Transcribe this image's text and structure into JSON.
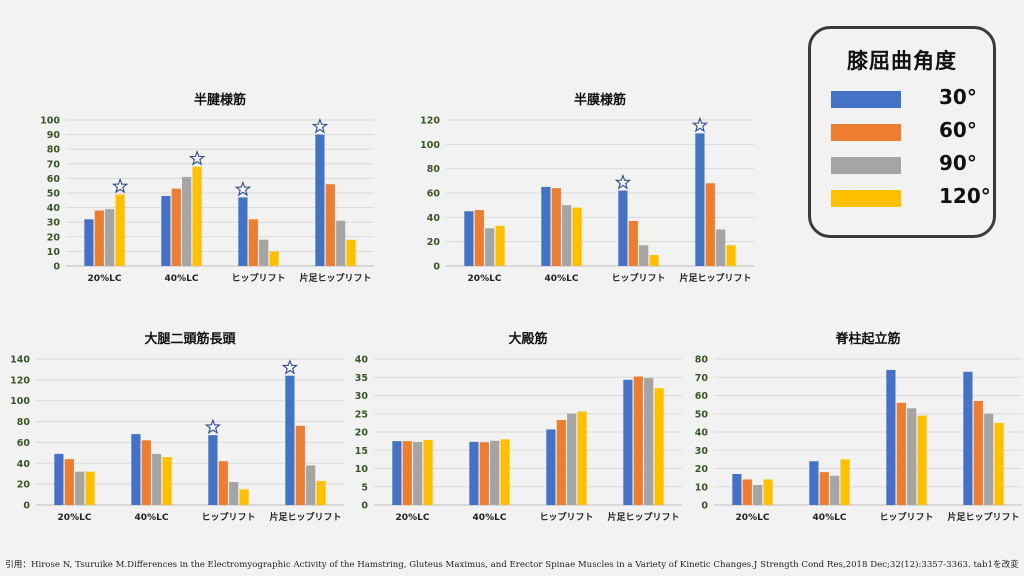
{
  "colors": {
    "s30": "#4472c4",
    "s60": "#ed7d31",
    "s90": "#a5a5a5",
    "s120": "#ffc000",
    "grid": "#d9d9d9",
    "tick": "#375623",
    "star": "#2f4d8f"
  },
  "legend": {
    "title": "膝屈曲角度",
    "items": [
      {
        "label": "30°",
        "color": "#4472c4"
      },
      {
        "label": "60°",
        "color": "#ed7d31"
      },
      {
        "label": "90°",
        "color": "#a5a5a5"
      },
      {
        "label": "120°",
        "color": "#ffc000"
      }
    ]
  },
  "citation": "引用：Hirose N, Tsuruike M.Differences in the Electromyographic Activity of the Hamstring, Gluteus Maximus, and Erector Spinae Muscles in a Variety of Kinetic Changes.J Strength Cond Res,2018 Dec;32(12):3357-3363. tab1を改変",
  "chart_data": [
    {
      "type": "bar",
      "title": "半腱様筋",
      "categories": [
        "20%LC",
        "40%LC",
        "ヒップリフト",
        "片足ヒップリフト"
      ],
      "series": [
        {
          "name": "30°",
          "values": [
            32,
            48,
            47,
            90
          ]
        },
        {
          "name": "60°",
          "values": [
            38,
            53,
            32,
            56
          ]
        },
        {
          "name": "90°",
          "values": [
            39,
            61,
            18,
            31
          ]
        },
        {
          "name": "120°",
          "values": [
            49,
            68,
            10,
            18
          ]
        }
      ],
      "ylim": [
        0,
        100
      ],
      "ytick_step": 10,
      "stars": [
        {
          "category": 0,
          "series": 3
        },
        {
          "category": 1,
          "series": 3
        },
        {
          "category": 2,
          "series": 0
        },
        {
          "category": 3,
          "series": 0
        }
      ]
    },
    {
      "type": "bar",
      "title": "半膜様筋",
      "categories": [
        "20%LC",
        "40%LC",
        "ヒップリフト",
        "片足ヒップリフト"
      ],
      "series": [
        {
          "name": "30°",
          "values": [
            45,
            65,
            62,
            109
          ]
        },
        {
          "name": "60°",
          "values": [
            46,
            64,
            37,
            68
          ]
        },
        {
          "name": "90°",
          "values": [
            31,
            50,
            17,
            30
          ]
        },
        {
          "name": "120°",
          "values": [
            33,
            48,
            9,
            17
          ]
        }
      ],
      "ylim": [
        0,
        120
      ],
      "ytick_step": 20,
      "stars": [
        {
          "category": 2,
          "series": 0
        },
        {
          "category": 3,
          "series": 0
        }
      ]
    },
    {
      "type": "bar",
      "title": "大腿二頭筋長頭",
      "categories": [
        "20%LC",
        "40%LC",
        "ヒップリフト",
        "片足ヒップリフト"
      ],
      "series": [
        {
          "name": "30°",
          "values": [
            49,
            68,
            67,
            124
          ]
        },
        {
          "name": "60°",
          "values": [
            44,
            62,
            42,
            76
          ]
        },
        {
          "name": "90°",
          "values": [
            32,
            49,
            22,
            38
          ]
        },
        {
          "name": "120°",
          "values": [
            32,
            46,
            15,
            23
          ]
        }
      ],
      "ylim": [
        0,
        140
      ],
      "ytick_step": 20,
      "stars": [
        {
          "category": 2,
          "series": 0
        },
        {
          "category": 3,
          "series": 0
        }
      ]
    },
    {
      "type": "bar",
      "title": "大殿筋",
      "categories": [
        "20%LC",
        "40%LC",
        "ヒップリフト",
        "片足ヒップリフト"
      ],
      "series": [
        {
          "name": "30°",
          "values": [
            17.5,
            17.3,
            20.7,
            34.3
          ]
        },
        {
          "name": "60°",
          "values": [
            17.5,
            17.2,
            23.3,
            35.2
          ]
        },
        {
          "name": "90°",
          "values": [
            17.3,
            17.6,
            25,
            34.8
          ]
        },
        {
          "name": "120°",
          "values": [
            17.8,
            18,
            25.6,
            32
          ]
        }
      ],
      "ylim": [
        0,
        40
      ],
      "ytick_step": 5,
      "stars": []
    },
    {
      "type": "bar",
      "title": "脊柱起立筋",
      "categories": [
        "20%LC",
        "40%LC",
        "ヒップリフト",
        "片足ヒップリフト"
      ],
      "series": [
        {
          "name": "30°",
          "values": [
            17,
            24,
            74,
            73
          ]
        },
        {
          "name": "60°",
          "values": [
            14,
            18,
            56,
            57
          ]
        },
        {
          "name": "90°",
          "values": [
            11,
            16,
            53,
            50
          ]
        },
        {
          "name": "120°",
          "values": [
            14,
            25,
            49,
            45
          ]
        }
      ],
      "ylim": [
        0,
        80
      ],
      "ytick_step": 10,
      "stars": []
    }
  ]
}
